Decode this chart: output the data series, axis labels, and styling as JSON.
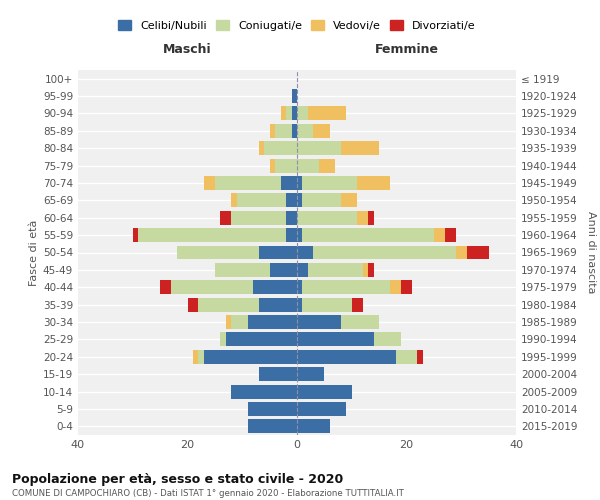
{
  "age_groups": [
    "0-4",
    "5-9",
    "10-14",
    "15-19",
    "20-24",
    "25-29",
    "30-34",
    "35-39",
    "40-44",
    "45-49",
    "50-54",
    "55-59",
    "60-64",
    "65-69",
    "70-74",
    "75-79",
    "80-84",
    "85-89",
    "90-94",
    "95-99",
    "100+"
  ],
  "birth_years": [
    "2015-2019",
    "2010-2014",
    "2005-2009",
    "2000-2004",
    "1995-1999",
    "1990-1994",
    "1985-1989",
    "1980-1984",
    "1975-1979",
    "1970-1974",
    "1965-1969",
    "1960-1964",
    "1955-1959",
    "1950-1954",
    "1945-1949",
    "1940-1944",
    "1935-1939",
    "1930-1934",
    "1925-1929",
    "1920-1924",
    "≤ 1919"
  ],
  "male": {
    "celibi": [
      9,
      9,
      12,
      7,
      17,
      13,
      9,
      7,
      8,
      5,
      7,
      2,
      2,
      2,
      3,
      0,
      0,
      1,
      1,
      1,
      0
    ],
    "coniugati": [
      0,
      0,
      0,
      0,
      1,
      1,
      3,
      11,
      15,
      10,
      15,
      27,
      10,
      9,
      12,
      4,
      6,
      3,
      1,
      0,
      0
    ],
    "vedovi": [
      0,
      0,
      0,
      0,
      1,
      0,
      1,
      0,
      0,
      0,
      0,
      0,
      0,
      1,
      2,
      1,
      1,
      1,
      1,
      0,
      0
    ],
    "divorziati": [
      0,
      0,
      0,
      0,
      0,
      0,
      0,
      2,
      2,
      0,
      0,
      1,
      2,
      0,
      0,
      0,
      0,
      0,
      0,
      0,
      0
    ]
  },
  "female": {
    "nubili": [
      6,
      9,
      10,
      5,
      18,
      14,
      8,
      1,
      1,
      2,
      3,
      1,
      0,
      1,
      1,
      0,
      0,
      0,
      0,
      0,
      0
    ],
    "coniugate": [
      0,
      0,
      0,
      0,
      4,
      5,
      7,
      9,
      16,
      10,
      26,
      24,
      11,
      7,
      10,
      4,
      8,
      3,
      2,
      0,
      0
    ],
    "vedove": [
      0,
      0,
      0,
      0,
      0,
      0,
      0,
      0,
      2,
      1,
      2,
      2,
      2,
      3,
      6,
      3,
      7,
      3,
      7,
      0,
      0
    ],
    "divorziate": [
      0,
      0,
      0,
      0,
      1,
      0,
      0,
      2,
      2,
      1,
      4,
      2,
      1,
      0,
      0,
      0,
      0,
      0,
      0,
      0,
      0
    ]
  },
  "colors": {
    "celibi": "#3a6ea5",
    "coniugati": "#c5d9a0",
    "vedovi": "#f0c060",
    "divorziati": "#cc2222"
  },
  "xlim": 40,
  "title": "Popolazione per età, sesso e stato civile - 2020",
  "subtitle": "COMUNE DI CAMPOCHIARO (CB) - Dati ISTAT 1° gennaio 2020 - Elaborazione TUTTITALIA.IT",
  "ylabel_left": "Fasce di età",
  "ylabel_right": "Anni di nascita",
  "xlabel_left": "Maschi",
  "xlabel_right": "Femmine",
  "background_color": "#f0f0f0"
}
